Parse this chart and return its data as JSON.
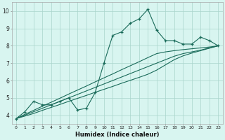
{
  "xlabel": "Humidex (Indice chaleur)",
  "ylabel": "",
  "x_main": [
    0,
    1,
    2,
    3,
    4,
    5,
    6,
    7,
    8,
    9,
    10,
    11,
    12,
    13,
    14,
    15,
    16,
    17,
    18,
    19,
    20,
    21,
    22,
    23
  ],
  "y_main": [
    3.8,
    4.2,
    4.8,
    4.6,
    4.6,
    4.8,
    5.0,
    4.3,
    4.4,
    5.3,
    7.0,
    8.6,
    8.8,
    9.3,
    9.55,
    10.1,
    8.9,
    8.3,
    8.3,
    8.1,
    8.1,
    8.5,
    8.3,
    8.0
  ],
  "y_line1": [
    3.8,
    4.05,
    4.28,
    4.52,
    4.75,
    4.98,
    5.22,
    5.45,
    5.68,
    5.92,
    6.15,
    6.38,
    6.62,
    6.85,
    7.08,
    7.32,
    7.55,
    7.65,
    7.72,
    7.78,
    7.83,
    7.88,
    7.93,
    8.0
  ],
  "y_line2": [
    3.8,
    4.0,
    4.2,
    4.4,
    4.6,
    4.8,
    5.0,
    5.2,
    5.4,
    5.6,
    5.8,
    6.0,
    6.2,
    6.4,
    6.6,
    6.8,
    7.0,
    7.2,
    7.4,
    7.55,
    7.65,
    7.75,
    7.88,
    8.0
  ],
  "y_line3": [
    3.8,
    3.95,
    4.1,
    4.28,
    4.45,
    4.62,
    4.8,
    4.97,
    5.14,
    5.32,
    5.49,
    5.66,
    5.84,
    6.01,
    6.18,
    6.36,
    6.6,
    6.9,
    7.2,
    7.42,
    7.58,
    7.72,
    7.86,
    8.0
  ],
  "line_color": "#1a6b5a",
  "bg_color": "#d8f5f0",
  "grid_color": "#aad4cc",
  "ylim": [
    3.5,
    10.5
  ],
  "xlim": [
    -0.5,
    23.5
  ]
}
